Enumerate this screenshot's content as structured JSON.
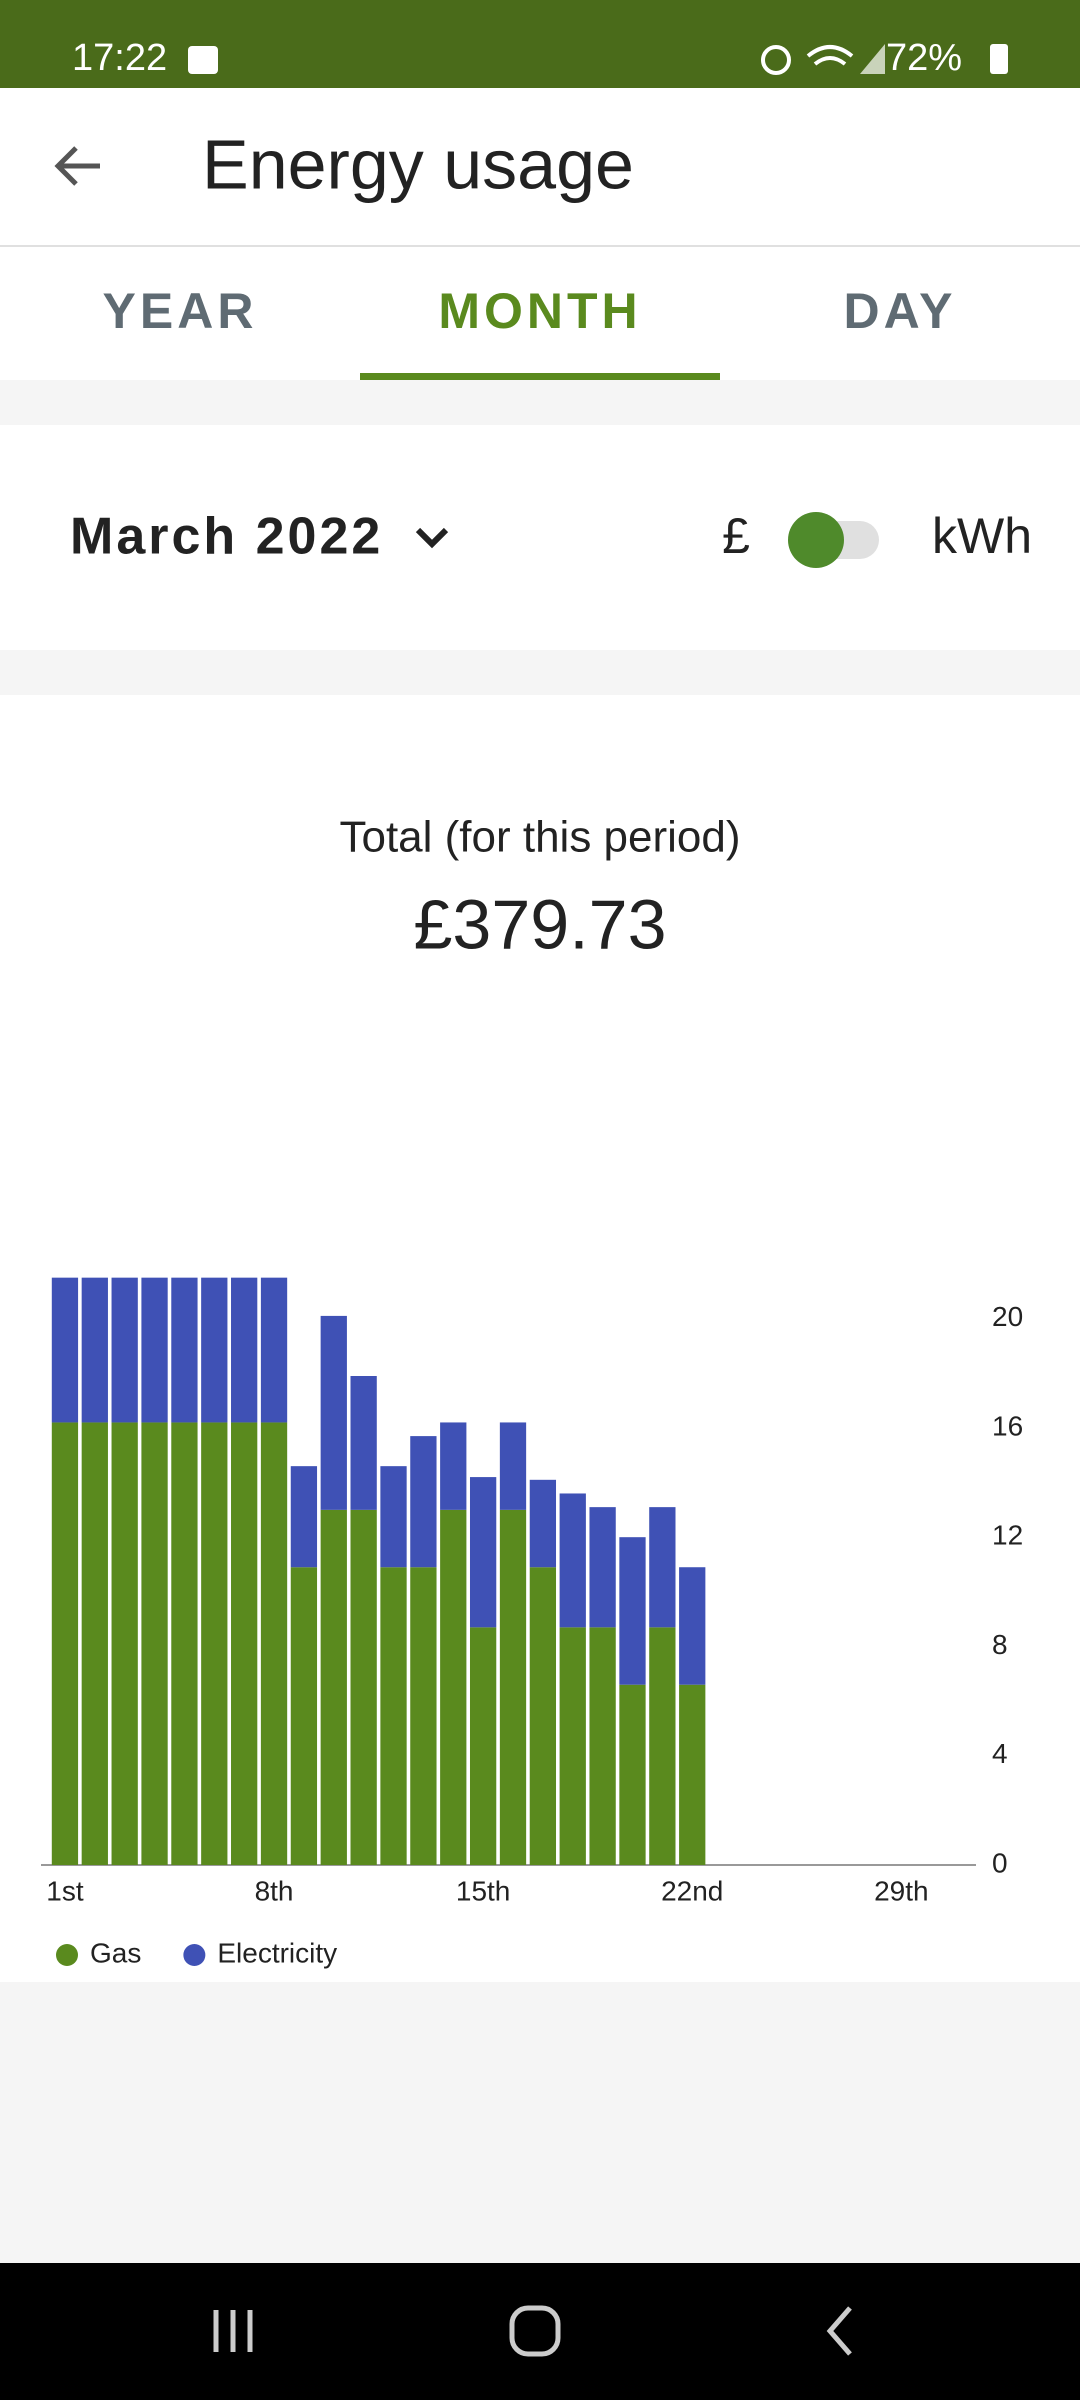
{
  "status_bar": {
    "time": "17:22",
    "battery": "72%"
  },
  "header": {
    "title": "Energy usage"
  },
  "tabs": [
    "YEAR",
    "MONTH",
    "DAY"
  ],
  "period": "March 2022",
  "toggle": {
    "left": "£",
    "right": "kWh"
  },
  "total": {
    "label": "Total (for this period)",
    "value": "£379.73"
  },
  "chart_data": {
    "type": "stacked_bar",
    "categories": [
      "1st",
      null,
      null,
      null,
      null,
      null,
      null,
      "8th",
      null,
      null,
      null,
      null,
      null,
      null,
      "15th",
      null,
      null,
      null,
      null,
      null,
      null,
      "22nd",
      null,
      null,
      null,
      null,
      null,
      null,
      "29th",
      null,
      null
    ],
    "series": [
      {
        "name": "Gas",
        "color": "#5a8a1e",
        "values": [
          16.2,
          16.2,
          16.2,
          16.2,
          16.2,
          16.2,
          16.2,
          16.2,
          10.9,
          13.0,
          13.0,
          10.9,
          10.9,
          13.0,
          8.7,
          13.0,
          10.9,
          8.7,
          8.7,
          6.6,
          8.7,
          6.6,
          null,
          null,
          null,
          null,
          null,
          null,
          null,
          null,
          null
        ]
      },
      {
        "name": "Electricity",
        "color": "#3f51b5",
        "values": [
          5.3,
          5.3,
          5.3,
          5.3,
          5.3,
          5.3,
          5.3,
          5.3,
          3.7,
          7.1,
          4.9,
          3.7,
          4.8,
          3.2,
          5.5,
          3.2,
          3.2,
          4.9,
          4.4,
          5.4,
          4.4,
          4.3,
          null,
          null,
          null,
          null,
          null,
          null,
          null,
          null,
          null
        ]
      }
    ],
    "ylim": [
      0,
      22
    ],
    "yticks": [
      0,
      4,
      8,
      12,
      16,
      20
    ],
    "legend": "bottom-left"
  }
}
